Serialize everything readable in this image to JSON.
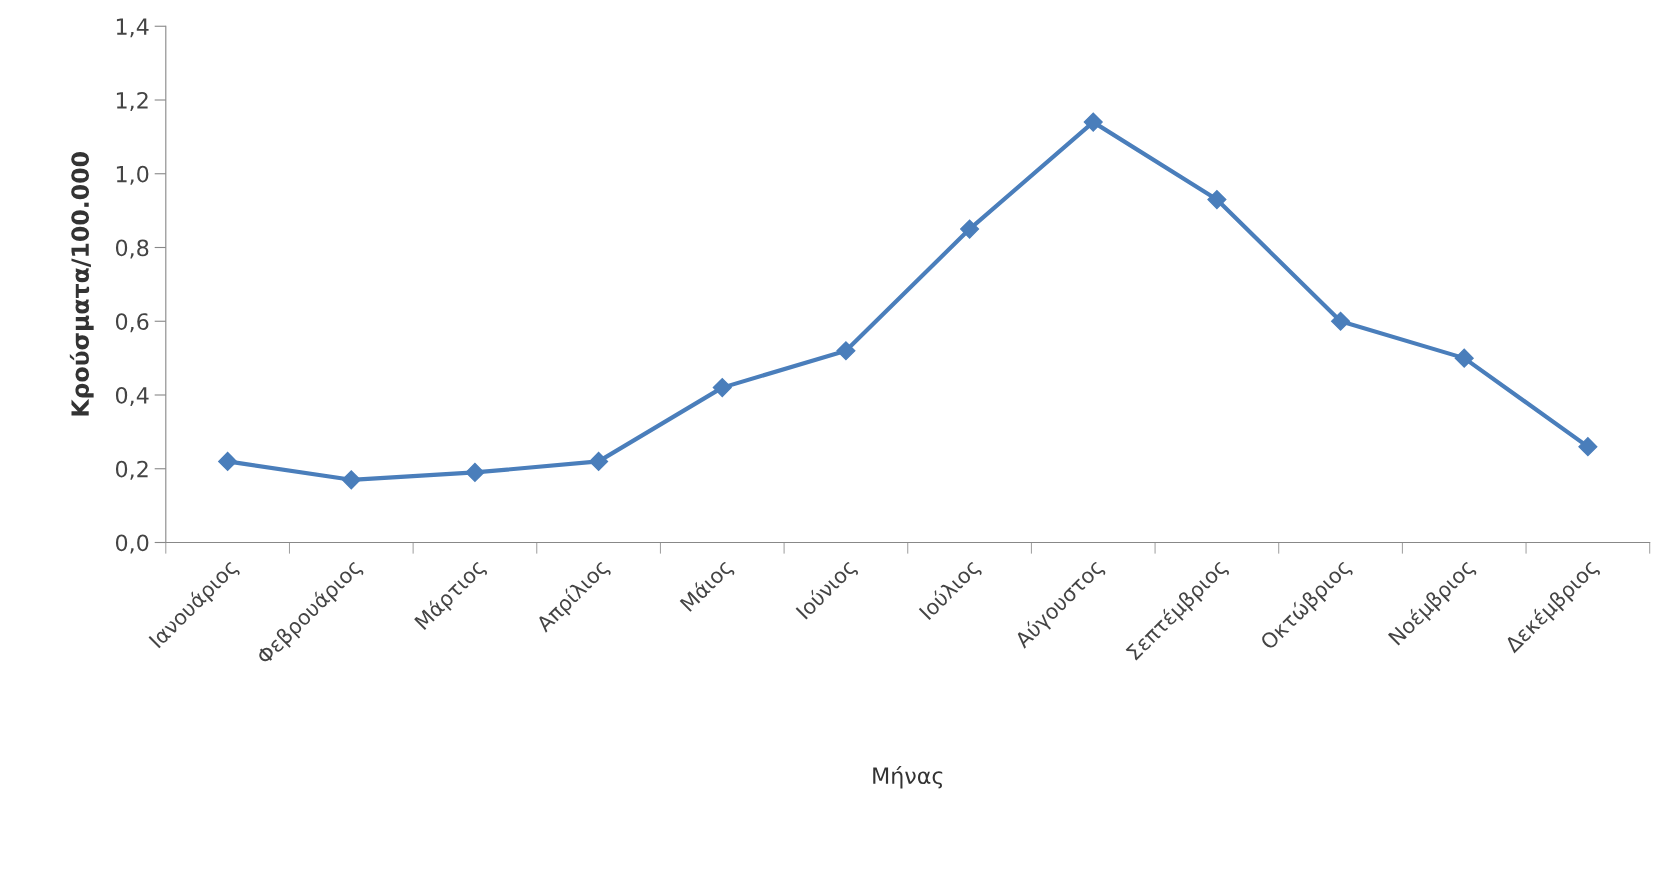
{
  "chart_data": {
    "type": "line",
    "xlabel": "Μήνας",
    "ylabel": "Κρούσματα/100.000",
    "categories": [
      "Ιανουάριος",
      "Φεβρουάριος",
      "Μάρτιος",
      "Απρίλιος",
      "Μάιος",
      "Ιούνιος",
      "Ιούλιος",
      "Αύγουστος",
      "Σεπτέμβριος",
      "Οκτώβριος",
      "Νοέμβριος",
      "Δεκέμβριος"
    ],
    "series": [
      {
        "color": "#4a7ebb",
        "values": [
          0.22,
          0.17,
          0.19,
          0.22,
          0.42,
          0.52,
          0.85,
          1.14,
          0.93,
          0.6,
          0.5,
          0.26
        ]
      }
    ],
    "ylim": [
      0,
      1.4
    ],
    "yticks": [
      {
        "value": 0,
        "label": "0,0"
      },
      {
        "value": 0.2,
        "label": "0,2"
      },
      {
        "value": 0.4,
        "label": "0,4"
      },
      {
        "value": 0.6,
        "label": "0,6"
      },
      {
        "value": 0.8,
        "label": "0,8"
      },
      {
        "value": 1.0,
        "label": "1,0"
      },
      {
        "value": 1.2,
        "label": "1,2"
      },
      {
        "value": 1.4,
        "label": "1,4"
      }
    ],
    "marker": "diamond",
    "line_style": "solid",
    "grid": false
  }
}
